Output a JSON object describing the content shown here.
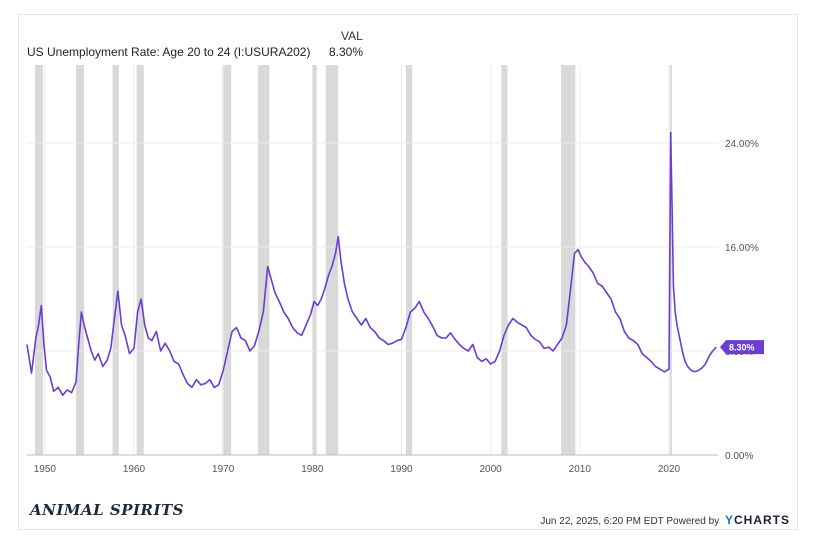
{
  "legend": {
    "column_header": "VAL",
    "series_name": "US Unemployment Rate: Age 20 to 24 (I:USURA202)",
    "series_value": "8.30%"
  },
  "brand": "ANIMAL SPIRITS",
  "footer": {
    "timestamp": "Jun 22, 2025, 6:20 PM EDT",
    "powered_by": "Powered by",
    "provider": "CHARTS",
    "provider_initial": "Y"
  },
  "colors": {
    "series": "#6b3ecf",
    "recession": "#d9d9d9",
    "grid": "#ececec"
  },
  "chart_data": {
    "type": "line",
    "title": "",
    "xlabel": "",
    "ylabel": "",
    "xlim": [
      1948,
      2025.5
    ],
    "ylim": [
      0,
      30
    ],
    "y_axis_position": "right",
    "y_ticks": [
      0,
      8,
      16,
      24
    ],
    "y_tick_labels": [
      "0.00%",
      "8.00%",
      "16.00%",
      "24.00%"
    ],
    "x_ticks": [
      1950,
      1960,
      1970,
      1980,
      1990,
      2000,
      2010,
      2020
    ],
    "x_tick_labels": [
      "1950",
      "1960",
      "1970",
      "1980",
      "1990",
      "2000",
      "2010",
      "2020"
    ],
    "grid": true,
    "last_value_label": "8.30%",
    "recessions": [
      [
        1948.9,
        1949.8
      ],
      [
        1953.5,
        1954.4
      ],
      [
        1957.6,
        1958.3
      ],
      [
        1960.3,
        1961.1
      ],
      [
        1969.9,
        1970.9
      ],
      [
        1973.9,
        1975.2
      ],
      [
        1980.0,
        1980.5
      ],
      [
        1981.5,
        1982.9
      ],
      [
        1990.5,
        1991.2
      ],
      [
        2001.2,
        2001.9
      ],
      [
        2007.9,
        2009.5
      ],
      [
        2020.1,
        2020.3
      ]
    ],
    "series": [
      {
        "name": "US Unemployment Rate: Age 20 to 24 (I:USURA202)",
        "x": [
          1948.0,
          1948.5,
          1949.0,
          1949.3,
          1949.6,
          1949.9,
          1950.2,
          1950.6,
          1951.0,
          1951.5,
          1952.0,
          1952.5,
          1953.0,
          1953.5,
          1953.8,
          1954.1,
          1954.4,
          1954.8,
          1955.2,
          1955.6,
          1956.0,
          1956.5,
          1957.0,
          1957.4,
          1957.8,
          1958.2,
          1958.6,
          1959.0,
          1959.5,
          1960.0,
          1960.4,
          1960.8,
          1961.2,
          1961.6,
          1962.0,
          1962.5,
          1963.0,
          1963.5,
          1964.0,
          1964.5,
          1965.0,
          1965.5,
          1966.0,
          1966.5,
          1967.0,
          1967.5,
          1968.0,
          1968.5,
          1969.0,
          1969.5,
          1970.0,
          1970.5,
          1971.0,
          1971.5,
          1972.0,
          1972.5,
          1973.0,
          1973.5,
          1974.0,
          1974.5,
          1975.0,
          1975.4,
          1975.8,
          1976.3,
          1976.8,
          1977.3,
          1977.8,
          1978.3,
          1978.8,
          1979.3,
          1979.8,
          1980.2,
          1980.6,
          1981.0,
          1981.4,
          1981.8,
          1982.2,
          1982.6,
          1982.9,
          1983.2,
          1983.6,
          1984.0,
          1984.5,
          1985.0,
          1985.5,
          1986.0,
          1986.5,
          1987.0,
          1987.5,
          1988.0,
          1988.5,
          1989.0,
          1989.5,
          1990.0,
          1990.5,
          1991.0,
          1991.5,
          1992.0,
          1992.5,
          1993.0,
          1993.5,
          1994.0,
          1994.5,
          1995.0,
          1995.5,
          1996.0,
          1996.5,
          1997.0,
          1997.5,
          1998.0,
          1998.5,
          1999.0,
          1999.5,
          2000.0,
          2000.5,
          2001.0,
          2001.5,
          2002.0,
          2002.5,
          2003.0,
          2003.5,
          2004.0,
          2004.5,
          2005.0,
          2005.5,
          2006.0,
          2006.5,
          2007.0,
          2007.5,
          2008.0,
          2008.5,
          2009.0,
          2009.4,
          2009.8,
          2010.2,
          2010.6,
          2011.0,
          2011.5,
          2012.0,
          2012.5,
          2013.0,
          2013.5,
          2014.0,
          2014.5,
          2015.0,
          2015.5,
          2016.0,
          2016.5,
          2017.0,
          2017.5,
          2018.0,
          2018.5,
          2019.0,
          2019.5,
          2020.0,
          2020.2,
          2020.35,
          2020.5,
          2020.7,
          2020.9,
          2021.2,
          2021.5,
          2021.8,
          2022.1,
          2022.5,
          2022.9,
          2023.3,
          2023.7,
          2024.1,
          2024.5,
          2024.9,
          2025.3
        ],
        "values": [
          8.5,
          6.3,
          9.0,
          10.0,
          11.5,
          8.5,
          6.5,
          6.0,
          4.9,
          5.2,
          4.6,
          5.0,
          4.8,
          5.6,
          8.5,
          11.0,
          10.0,
          9.0,
          8.0,
          7.3,
          7.8,
          6.8,
          7.3,
          8.2,
          10.5,
          12.6,
          10.0,
          9.2,
          7.8,
          8.2,
          11.0,
          12.0,
          10.0,
          9.0,
          8.8,
          9.5,
          8.0,
          8.6,
          8.0,
          7.2,
          7.0,
          6.2,
          5.5,
          5.2,
          5.8,
          5.4,
          5.5,
          5.8,
          5.2,
          5.4,
          6.5,
          8.0,
          9.5,
          9.8,
          9.0,
          8.8,
          8.0,
          8.4,
          9.5,
          11.0,
          14.5,
          13.5,
          12.5,
          11.8,
          11.0,
          10.5,
          9.8,
          9.4,
          9.2,
          10.0,
          10.8,
          11.8,
          11.5,
          12.0,
          12.8,
          13.8,
          14.5,
          15.5,
          16.8,
          15.0,
          13.2,
          12.0,
          11.0,
          10.5,
          10.0,
          10.5,
          9.8,
          9.5,
          9.0,
          8.8,
          8.5,
          8.6,
          8.8,
          8.9,
          9.8,
          11.0,
          11.3,
          11.8,
          11.0,
          10.5,
          9.9,
          9.2,
          9.0,
          9.0,
          9.4,
          8.9,
          8.5,
          8.2,
          8.0,
          8.5,
          7.5,
          7.2,
          7.4,
          7.0,
          7.2,
          8.0,
          9.2,
          10.0,
          10.5,
          10.2,
          10.0,
          9.8,
          9.2,
          8.9,
          8.7,
          8.2,
          8.3,
          8.0,
          8.5,
          9.0,
          10.0,
          13.0,
          15.5,
          15.8,
          15.2,
          14.8,
          14.5,
          14.0,
          13.2,
          13.0,
          12.5,
          12.0,
          11.0,
          10.5,
          9.5,
          9.0,
          8.8,
          8.5,
          7.8,
          7.5,
          7.2,
          6.8,
          6.6,
          6.4,
          6.6,
          24.8,
          19.0,
          13.0,
          11.0,
          10.0,
          9.0,
          8.0,
          7.2,
          6.8,
          6.5,
          6.4,
          6.5,
          6.7,
          7.0,
          7.6,
          8.0,
          8.3
        ]
      }
    ]
  }
}
